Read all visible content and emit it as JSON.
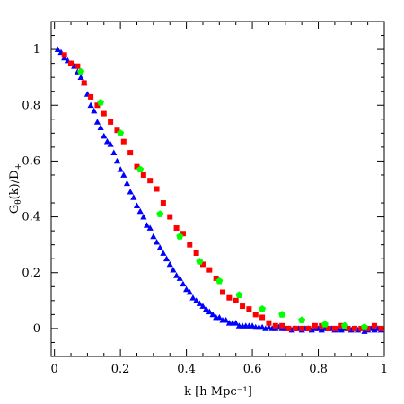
{
  "chart_data": {
    "type": "scatter",
    "xlabel": "k [h Mpc⁻¹]",
    "ylabel": "Gθ(k)/D+",
    "ylabel_parts": {
      "main": "G",
      "sub_theta": "θ",
      "mid": "(k)/D",
      "sub_plus": "+"
    },
    "xlim": [
      -0.01,
      1.0
    ],
    "ylim": [
      -0.1,
      1.1
    ],
    "x_ticks": [
      0,
      0.2,
      0.4,
      0.6,
      0.8,
      1
    ],
    "x_tick_labels": [
      "0",
      "0.2",
      "0.4",
      "0.6",
      "0.8",
      "1"
    ],
    "y_ticks": [
      0,
      0.2,
      0.4,
      0.6,
      0.8,
      1
    ],
    "y_tick_labels": [
      "0",
      "0.2",
      "0.4",
      "0.6",
      "0.8",
      "1"
    ],
    "grid": false,
    "legend": "none",
    "series": [
      {
        "marker": "triangle",
        "color": "#0000ff",
        "x": [
          0.01,
          0.02,
          0.03,
          0.04,
          0.05,
          0.06,
          0.07,
          0.08,
          0.09,
          0.1,
          0.11,
          0.12,
          0.13,
          0.14,
          0.15,
          0.16,
          0.17,
          0.18,
          0.19,
          0.2,
          0.21,
          0.22,
          0.23,
          0.24,
          0.25,
          0.26,
          0.27,
          0.28,
          0.29,
          0.3,
          0.31,
          0.32,
          0.33,
          0.34,
          0.35,
          0.36,
          0.37,
          0.38,
          0.39,
          0.4,
          0.41,
          0.42,
          0.43,
          0.44,
          0.45,
          0.46,
          0.47,
          0.48,
          0.49,
          0.5,
          0.51,
          0.52,
          0.53,
          0.54,
          0.55,
          0.56,
          0.57,
          0.58,
          0.59,
          0.6,
          0.61,
          0.62,
          0.63,
          0.64,
          0.65,
          0.66,
          0.67,
          0.68,
          0.69,
          0.7,
          0.71,
          0.72,
          0.73,
          0.74,
          0.75,
          0.76,
          0.77,
          0.78,
          0.79,
          0.8,
          0.81,
          0.82,
          0.83,
          0.84,
          0.85,
          0.86,
          0.87,
          0.88,
          0.89,
          0.9,
          0.91,
          0.92,
          0.93,
          0.94,
          0.95,
          0.96,
          0.97,
          0.98,
          0.99
        ],
        "y": [
          1.0,
          0.99,
          0.97,
          0.96,
          0.95,
          0.94,
          0.92,
          0.9,
          0.88,
          0.84,
          0.8,
          0.78,
          0.74,
          0.72,
          0.69,
          0.67,
          0.66,
          0.63,
          0.6,
          0.57,
          0.55,
          0.52,
          0.49,
          0.47,
          0.44,
          0.42,
          0.4,
          0.37,
          0.36,
          0.33,
          0.31,
          0.29,
          0.27,
          0.25,
          0.23,
          0.21,
          0.19,
          0.18,
          0.16,
          0.14,
          0.13,
          0.11,
          0.1,
          0.09,
          0.08,
          0.07,
          0.06,
          0.05,
          0.04,
          0.04,
          0.03,
          0.03,
          0.02,
          0.02,
          0.02,
          0.01,
          0.01,
          0.01,
          0.01,
          0.01,
          0.005,
          0.005,
          0.005,
          0.0,
          0.005,
          0.0,
          0.0,
          0.005,
          0.0,
          0.0,
          0.0,
          -0.005,
          0.0,
          0.0,
          -0.005,
          0.0,
          0.0,
          -0.005,
          0.0,
          0.0,
          -0.005,
          0.0,
          0.0,
          0.0,
          -0.005,
          0.0,
          -0.005,
          0.0,
          0.0,
          -0.005,
          0.0,
          -0.005,
          0.0,
          -0.01,
          -0.005,
          0.0,
          -0.005,
          0.0,
          -0.005
        ]
      },
      {
        "marker": "square",
        "color": "#ff0000",
        "x": [
          0.03,
          0.05,
          0.07,
          0.09,
          0.11,
          0.13,
          0.15,
          0.17,
          0.19,
          0.21,
          0.23,
          0.25,
          0.27,
          0.29,
          0.31,
          0.33,
          0.35,
          0.37,
          0.39,
          0.41,
          0.43,
          0.45,
          0.47,
          0.49,
          0.51,
          0.53,
          0.55,
          0.57,
          0.59,
          0.61,
          0.63,
          0.65,
          0.67,
          0.69,
          0.71,
          0.73,
          0.75,
          0.77,
          0.79,
          0.81,
          0.83,
          0.85,
          0.87,
          0.89,
          0.91,
          0.93,
          0.95,
          0.97,
          0.99
        ],
        "y": [
          0.98,
          0.95,
          0.94,
          0.88,
          0.83,
          0.8,
          0.77,
          0.74,
          0.71,
          0.67,
          0.63,
          0.58,
          0.55,
          0.53,
          0.5,
          0.45,
          0.4,
          0.36,
          0.34,
          0.3,
          0.27,
          0.23,
          0.21,
          0.18,
          0.13,
          0.11,
          0.1,
          0.08,
          0.07,
          0.05,
          0.04,
          0.02,
          0.01,
          0.01,
          0.0,
          0.0,
          0.0,
          0.0,
          0.01,
          0.01,
          0.0,
          0.0,
          0.01,
          0.0,
          0.0,
          0.0,
          0.0,
          0.01,
          0.0
        ]
      },
      {
        "marker": "pentagon",
        "color": "#00ff00",
        "x": [
          0.08,
          0.14,
          0.2,
          0.26,
          0.32,
          0.38,
          0.44,
          0.5,
          0.56,
          0.63,
          0.69,
          0.75,
          0.82,
          0.88,
          0.94
        ],
        "y": [
          0.92,
          0.81,
          0.7,
          0.57,
          0.41,
          0.33,
          0.24,
          0.17,
          0.12,
          0.07,
          0.05,
          0.03,
          0.015,
          0.01,
          0.005
        ]
      }
    ]
  }
}
